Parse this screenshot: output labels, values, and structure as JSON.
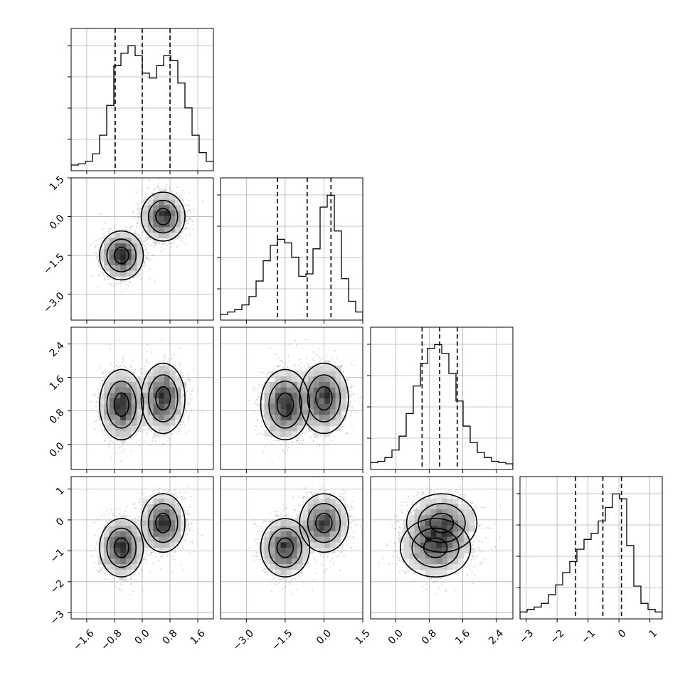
{
  "chart_data": {
    "type": "corner",
    "parameters": 4,
    "axis_ticks": [
      {
        "values": [
          -1.6,
          -0.8,
          0.0,
          0.8,
          1.6
        ],
        "labels": [
          "−1.6",
          "−0.8",
          "0.0",
          "0.8",
          "1.6"
        ]
      },
      {
        "values": [
          -3.0,
          -1.5,
          0.0,
          1.5
        ],
        "labels": [
          "−3.0",
          "−1.5",
          "0.0",
          "1.5"
        ]
      },
      {
        "values": [
          0.0,
          0.8,
          1.6,
          2.4
        ],
        "labels": [
          "0.0",
          "0.8",
          "1.6",
          "2.4"
        ]
      },
      {
        "values": [
          -3,
          -2,
          -1,
          0,
          1
        ],
        "labels": [
          "−3",
          "−2",
          "−1",
          "0",
          "1"
        ]
      }
    ],
    "axis_ranges": [
      [
        -2.05,
        2.05
      ],
      [
        -4.0,
        1.5
      ],
      [
        -0.6,
        2.8
      ],
      [
        -3.2,
        1.4
      ]
    ],
    "quantiles": [
      [
        -0.78,
        0.0,
        0.8
      ],
      [
        -1.8,
        -0.65,
        0.27
      ],
      [
        0.63,
        1.05,
        1.47
      ],
      [
        -1.4,
        -0.52,
        0.08
      ]
    ],
    "histograms": [
      [
        0,
        1,
        3,
        9,
        24,
        48,
        80,
        90,
        96,
        88,
        74,
        70,
        80,
        88,
        84,
        66,
        46,
        24,
        10,
        3
      ],
      [
        0,
        2,
        4,
        8,
        15,
        28,
        45,
        58,
        63,
        60,
        48,
        32,
        34,
        55,
        90,
        100,
        70,
        30,
        11,
        2
      ],
      [
        1,
        2,
        5,
        11,
        22,
        40,
        62,
        80,
        92,
        95,
        88,
        72,
        50,
        30,
        17,
        9,
        5,
        2,
        1,
        0
      ],
      [
        1,
        3,
        5,
        8,
        15,
        23,
        33,
        42,
        52,
        60,
        65,
        75,
        86,
        97,
        93,
        55,
        22,
        8,
        3,
        1
      ]
    ],
    "modes": [
      {
        "p0": -0.6,
        "p1": -1.5,
        "p2": 0.95,
        "p3": -0.9
      },
      {
        "p0": 0.6,
        "p1": 0.0,
        "p2": 1.1,
        "p3": -0.1
      }
    ],
    "grid": true
  }
}
